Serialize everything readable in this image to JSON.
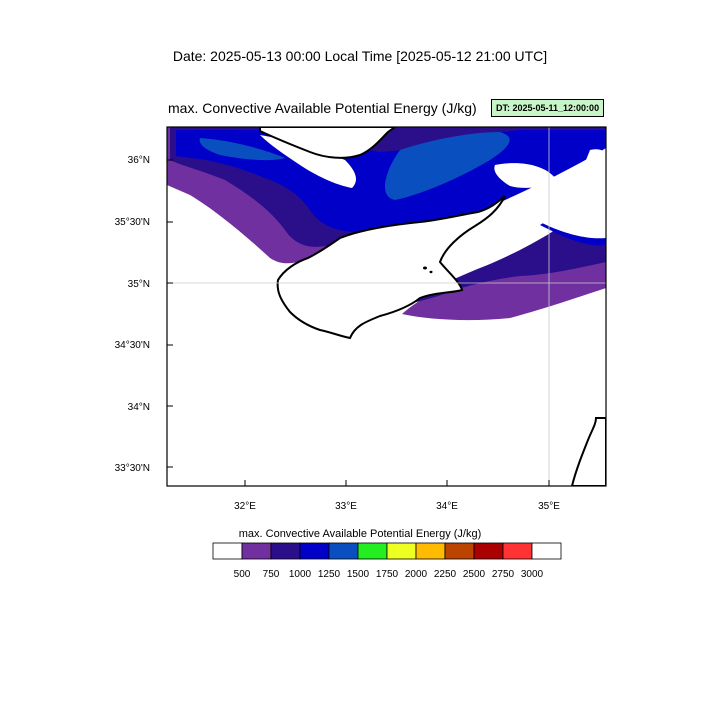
{
  "header": {
    "date_line": "Date: 2025-05-13  00:00 Local Time [2025-05-12  21:00 UTC]",
    "map_title": "max. Convective Available Potential Energy   (J/kg)",
    "dt_badge": "DT: 2025-05-11_12:00:00"
  },
  "map": {
    "lat_labels": [
      "36°N",
      "35°30'N",
      "35°N",
      "34°30'N",
      "34°N",
      "33°30'N"
    ],
    "lon_labels": [
      "32°E",
      "33°E",
      "34°E",
      "35°E"
    ],
    "extent": {
      "lon_min": 31.2,
      "lon_max": 35.55,
      "lat_min": 33.35,
      "lat_max": 36.27
    }
  },
  "colorbar": {
    "title": "max. Convective Available Potential Energy  (J/kg)",
    "labels": [
      "500",
      "750",
      "1000",
      "1250",
      "1500",
      "1750",
      "2000",
      "2250",
      "2500",
      "2750",
      "3000"
    ],
    "colors": [
      "#ffffff",
      "#7030a0",
      "#2a0e8a",
      "#0000c8",
      "#0a4fc0",
      "#22ee22",
      "#eeff22",
      "#ffbb00",
      "#bb4400",
      "#aa0000",
      "#ff3333",
      "#ffffff"
    ]
  },
  "colors": {
    "purple": "#7030a0",
    "dark_indigo": "#2a0e8a",
    "blue": "#0000c8",
    "med_blue": "#0a4fc0"
  }
}
